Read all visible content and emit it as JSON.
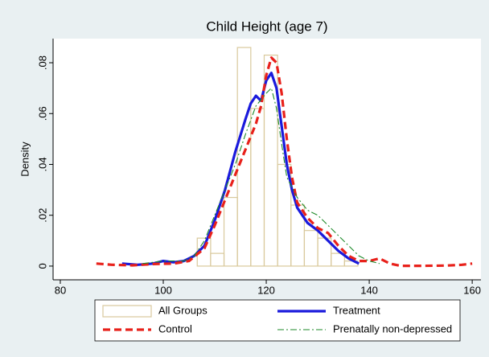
{
  "chart_data": {
    "type": "histogram",
    "title": "Child Height (age 7)",
    "ylabel": "Density",
    "xlim": [
      78.6,
      161.7
    ],
    "xticks": [
      80,
      100,
      120,
      140,
      160
    ],
    "ylim": [
      -0.0054,
      0.0895
    ],
    "yticks": [
      0,
      {
        "value": 0.02,
        "label": ".02"
      },
      {
        "value": 0.04,
        "label": ".04"
      },
      {
        "value": 0.06,
        "label": ".06"
      },
      {
        "value": 0.08,
        "label": ".08"
      }
    ],
    "histogram": {
      "name": "All Groups",
      "color": "#d9c99c",
      "bins": [
        106.6,
        109.2,
        111.8,
        114.4,
        117.0,
        119.6,
        122.2,
        124.8,
        127.4,
        130.0,
        132.6,
        135.2,
        137.8
      ],
      "values": [
        0.011,
        0.005,
        0.027,
        0.086,
        0.062,
        0.083,
        0.04,
        0.024,
        0.014,
        0.011,
        0.005,
        0.002
      ]
    },
    "series": [
      {
        "name": "Treatment",
        "color": "#1a1adc",
        "style": "solid",
        "x": [
          92,
          95,
          98,
          100,
          102,
          104,
          106,
          108,
          110,
          112,
          114,
          116,
          117,
          118,
          119,
          120,
          121,
          122,
          123,
          124,
          125,
          126,
          128,
          130,
          132,
          134,
          136,
          138
        ],
        "values": [
          0.001,
          0.0005,
          0.001,
          0.002,
          0.0015,
          0.002,
          0.004,
          0.008,
          0.018,
          0.03,
          0.045,
          0.058,
          0.064,
          0.067,
          0.065,
          0.073,
          0.076,
          0.07,
          0.055,
          0.04,
          0.03,
          0.023,
          0.017,
          0.014,
          0.01,
          0.006,
          0.003,
          0.001
        ]
      },
      {
        "name": "Control",
        "color": "#e8211b",
        "style": "dash",
        "x": [
          87,
          90,
          94,
          98,
          102,
          105,
          108,
          110,
          112,
          114,
          116,
          118,
          119,
          120,
          121,
          122,
          123,
          124,
          125,
          126,
          128,
          130,
          132,
          134,
          136,
          138,
          140,
          142,
          144,
          146,
          150,
          155,
          158,
          160
        ],
        "values": [
          0.001,
          0.0005,
          0.0003,
          0.0008,
          0.001,
          0.002,
          0.007,
          0.016,
          0.026,
          0.036,
          0.046,
          0.056,
          0.063,
          0.075,
          0.082,
          0.08,
          0.068,
          0.05,
          0.035,
          0.025,
          0.019,
          0.015,
          0.013,
          0.008,
          0.004,
          0.002,
          0.002,
          0.003,
          0.001,
          0.0001,
          0.0001,
          0.0002,
          0.0005,
          0.001
        ]
      },
      {
        "name": "Prenatally non-depressed",
        "color": "#1e8a2a",
        "style": "dashdot",
        "x": [
          96,
          100,
          104,
          106,
          108,
          110,
          112,
          114,
          116,
          118,
          120,
          121,
          122,
          123,
          124,
          126,
          128,
          130,
          132,
          134,
          136,
          138,
          140,
          142
        ],
        "values": [
          0.001,
          0.002,
          0.002,
          0.004,
          0.01,
          0.02,
          0.03,
          0.04,
          0.052,
          0.063,
          0.068,
          0.07,
          0.062,
          0.048,
          0.035,
          0.027,
          0.022,
          0.02,
          0.016,
          0.012,
          0.008,
          0.004,
          0.002,
          0.001
        ]
      }
    ]
  }
}
